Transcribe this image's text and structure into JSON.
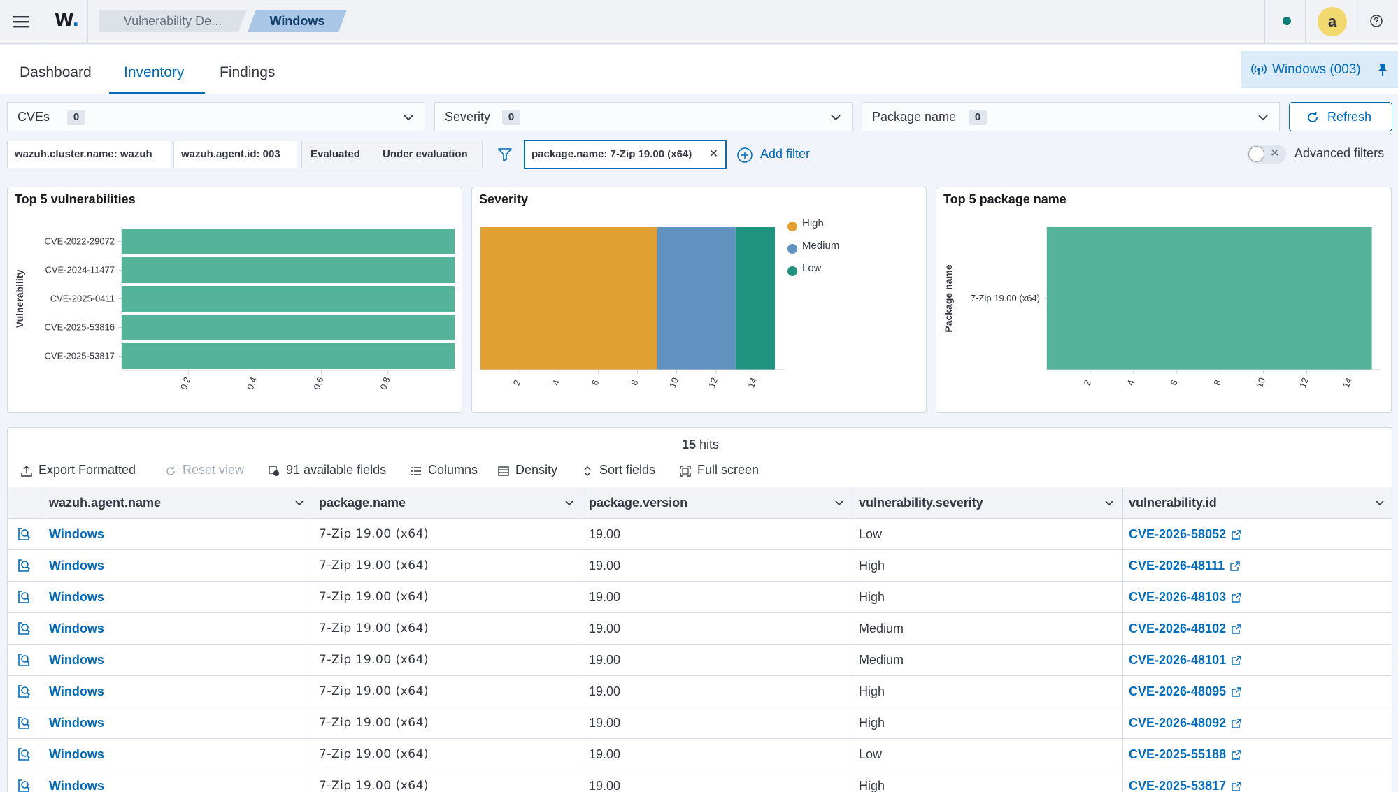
{
  "topbar": {
    "logo": "W",
    "breadcrumbs": [
      "Vulnerability De...",
      "Windows"
    ]
  },
  "tabs": [
    {
      "label": "Dashboard",
      "active": false
    },
    {
      "label": "Inventory",
      "active": true
    },
    {
      "label": "Findings",
      "active": false
    }
  ],
  "agent_selector": {
    "label": "Windows (003)"
  },
  "dropdown_filters": [
    {
      "label": "CVEs",
      "count": "0"
    },
    {
      "label": "Severity",
      "count": "0"
    },
    {
      "label": "Package name",
      "count": "0"
    }
  ],
  "refresh_label": "Refresh",
  "filter_pills": {
    "cluster": "wazuh.cluster.name: wazuh",
    "agent": "wazuh.agent.id: 003",
    "evaluated": "Evaluated",
    "under_evaluation": "Under evaluation",
    "package": "package.name: 7-Zip 19.00 (x64)"
  },
  "add_filter_label": "Add filter",
  "advanced_filters_label": "Advanced filters",
  "colors": {
    "accent": "#006bb8",
    "high": "#e2a032",
    "medium": "#6092c0",
    "low": "#209280",
    "bar_green": "#54b399"
  },
  "chart_data": [
    {
      "type": "bar",
      "orientation": "horizontal",
      "title": "Top 5 vulnerabilities",
      "ylabel": "Vulnerability",
      "xlabel": "",
      "categories": [
        "CVE-2022-29072",
        "CVE-2024-11477",
        "CVE-2025-0411",
        "CVE-2025-53816",
        "CVE-2025-53817"
      ],
      "values": [
        1,
        1,
        1,
        1,
        1
      ],
      "xticks": [
        "0.2",
        "0.4",
        "0.6",
        "0.8"
      ],
      "xlim": [
        0,
        1
      ]
    },
    {
      "type": "bar",
      "orientation": "horizontal-stacked",
      "title": "Severity",
      "series": [
        {
          "name": "High",
          "values": [
            9
          ]
        },
        {
          "name": "Medium",
          "values": [
            4
          ]
        },
        {
          "name": "Low",
          "values": [
            2
          ]
        }
      ],
      "xticks": [
        "2",
        "4",
        "6",
        "8",
        "10",
        "12",
        "14"
      ],
      "xlim": [
        0,
        15.5
      ],
      "legend": "right"
    },
    {
      "type": "bar",
      "orientation": "horizontal",
      "title": "Top 5 package name",
      "ylabel": "Package name",
      "categories": [
        "7-Zip 19.00 (x64)"
      ],
      "values": [
        15
      ],
      "xticks": [
        "2",
        "4",
        "6",
        "8",
        "10",
        "12",
        "14"
      ],
      "xlim": [
        0,
        15.4
      ]
    }
  ],
  "grid": {
    "hits_count": "15",
    "hits_label": "hits",
    "toolbar": {
      "export": "Export Formatted",
      "reset": "Reset view",
      "fields": "91 available fields",
      "columns": "Columns",
      "density": "Density",
      "sort": "Sort fields",
      "fullscreen": "Full screen"
    },
    "columns": [
      "wazuh.agent.name",
      "package.name",
      "package.version",
      "vulnerability.severity",
      "vulnerability.id"
    ],
    "rows": [
      [
        "Windows",
        "7-Zip 19.00 (x64)",
        "19.00",
        "Low",
        "CVE-2026-58052"
      ],
      [
        "Windows",
        "7-Zip 19.00 (x64)",
        "19.00",
        "High",
        "CVE-2026-48111"
      ],
      [
        "Windows",
        "7-Zip 19.00 (x64)",
        "19.00",
        "High",
        "CVE-2026-48103"
      ],
      [
        "Windows",
        "7-Zip 19.00 (x64)",
        "19.00",
        "Medium",
        "CVE-2026-48102"
      ],
      [
        "Windows",
        "7-Zip 19.00 (x64)",
        "19.00",
        "Medium",
        "CVE-2026-48101"
      ],
      [
        "Windows",
        "7-Zip 19.00 (x64)",
        "19.00",
        "High",
        "CVE-2026-48095"
      ],
      [
        "Windows",
        "7-Zip 19.00 (x64)",
        "19.00",
        "High",
        "CVE-2026-48092"
      ],
      [
        "Windows",
        "7-Zip 19.00 (x64)",
        "19.00",
        "Low",
        "CVE-2025-55188"
      ],
      [
        "Windows",
        "7-Zip 19.00 (x64)",
        "19.00",
        "High",
        "CVE-2025-53817"
      ]
    ]
  }
}
